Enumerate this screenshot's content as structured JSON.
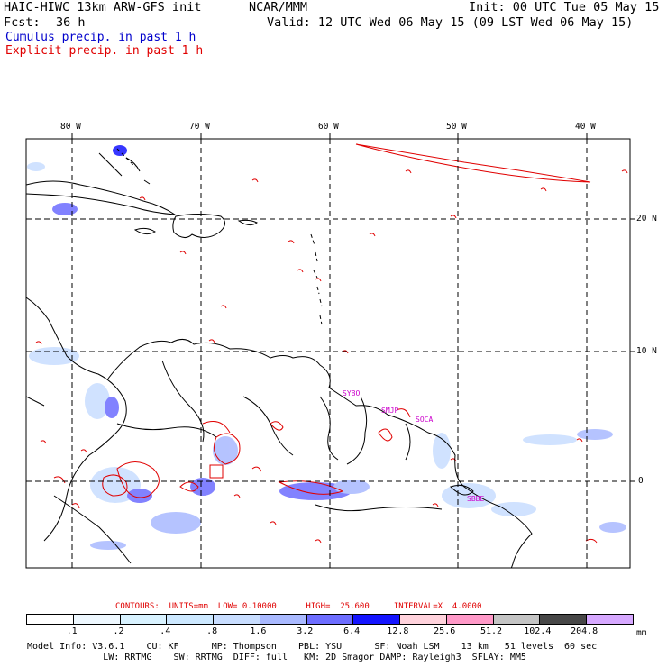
{
  "header": {
    "model": "HAIC-HIWC 13km ARW-GFS init",
    "org": "NCAR/MMM",
    "init": "Init: 00 UTC Tue 05 May 15",
    "fcst_label": "Fcst:",
    "fcst_value": "36 h",
    "valid": "Valid: 12 UTC Wed 06 May 15 (09 LST Wed 06 May 15)",
    "line_cumulus": "Cumulus precip. in past 1 h",
    "line_explicit": "Explicit precip. in past 1 h"
  },
  "map": {
    "lon_labels": [
      "80 W",
      "70 W",
      "60 W",
      "50 W",
      "40 W"
    ],
    "lat_labels": [
      "20 N",
      "10 N",
      "0"
    ],
    "stations": [
      "SYBO",
      "SMJP",
      "SOCA",
      "SBBE"
    ],
    "colors": {
      "land_outline": "#000000",
      "explicit_precip": "#e00000",
      "station_label": "#cc00cc",
      "grid": "#000000"
    }
  },
  "contours": {
    "label": "CONTOURS:  UNITS=mm  LOW= 0.10000      HIGH=  25.600     INTERVAL=X  4.0000"
  },
  "colorbar": {
    "unit": "mm",
    "ticks": [
      ".1",
      ".2",
      ".4",
      ".8",
      "1.6",
      "3.2",
      "6.4",
      "12.8",
      "25.6",
      "51.2",
      "102.4",
      "204.8"
    ],
    "colors": [
      "#ffffff",
      "#eef8ff",
      "#d8f2ff",
      "#cce8ff",
      "#c8ddff",
      "#a9b9ff",
      "#6d6dff",
      "#1414ff",
      "#ffd2dc",
      "#ff99c8",
      "#c4c4c4",
      "#474747",
      "#d6a8ff"
    ]
  },
  "model_info": {
    "line1": "Model Info: V3.6.1    CU: KF      MP: Thompson    PBL: YSU      SF: Noah LSM    13 km   51 levels  60 sec",
    "line2": "              LW: RRTMG    SW: RRTMG  DIFF: full   KM: 2D Smagor DAMP: Rayleigh3  SFLAY: MM5"
  }
}
